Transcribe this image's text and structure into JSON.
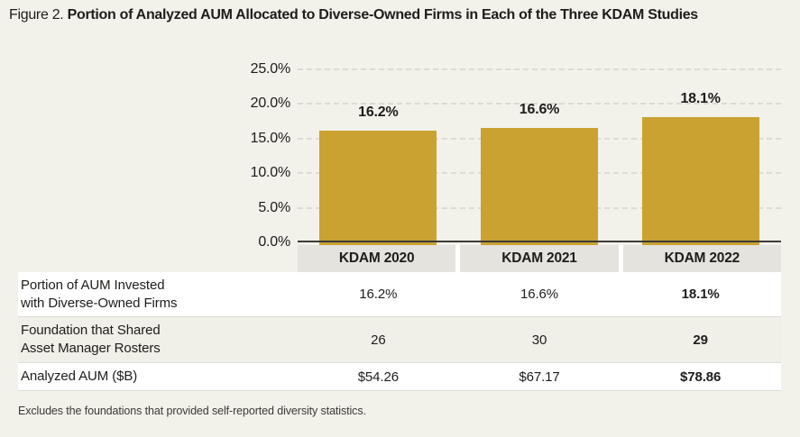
{
  "title": {
    "prefix": "Figure 2. ",
    "text": "Portion of Analyzed AUM Allocated to Diverse-Owned Firms in Each of the Three KDAM Studies"
  },
  "colors": {
    "background": "#f2f1ea",
    "bar": "#c9a232",
    "category_band": "#e4e3de",
    "axis_line": "#3b3a36",
    "gridline": "#dcdbd4",
    "text": "#1e1d1b",
    "row_white": "#ffffff"
  },
  "chart_data": {
    "type": "bar",
    "title": "Portion of Analyzed AUM Allocated to Diverse-Owned Firms in Each of the Three KDAM Studies",
    "categories": [
      "KDAM 2020",
      "KDAM 2021",
      "KDAM 2022"
    ],
    "values": [
      16.2,
      16.6,
      18.1
    ],
    "value_labels": [
      "16.2%",
      "16.6%",
      "18.1%"
    ],
    "xlabel": "",
    "ylabel": "",
    "ylim": [
      0,
      25
    ],
    "yticks": [
      0,
      5,
      10,
      15,
      20,
      25
    ],
    "ytick_labels": [
      "0.0%",
      "5.0%",
      "10.0%",
      "15.0%",
      "20.0%",
      "25.0%"
    ],
    "grid": "horizontal-dashed",
    "legend_position": "none",
    "bar_color": "#c9a232"
  },
  "table": {
    "column_headers": [
      "KDAM 2020",
      "KDAM 2021",
      "KDAM 2022"
    ],
    "rows": [
      {
        "label_lines": [
          "Portion of AUM Invested",
          "with Diverse-Owned Firms"
        ],
        "values": [
          "16.2%",
          "16.6%",
          "18.1%"
        ]
      },
      {
        "label_lines": [
          "Foundation that Shared",
          "Asset Manager Rosters"
        ],
        "values": [
          "26",
          "30",
          "29"
        ]
      },
      {
        "label_lines": [
          "Analyzed AUM ($B)"
        ],
        "values": [
          "$54.26",
          "$67.17",
          "$78.86"
        ]
      }
    ],
    "bold_column_index": 2
  },
  "footnote": "Excludes the foundations that provided self-reported diversity statistics."
}
